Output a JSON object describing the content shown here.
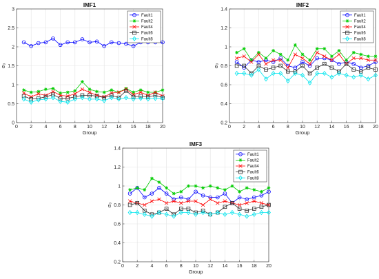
{
  "chart_data": [
    {
      "type": "line",
      "title": "IMF1",
      "xlabel": "Group",
      "ylabel": "σ₀",
      "xlim": [
        0,
        20
      ],
      "ylim": [
        0,
        3
      ],
      "xticks": [
        0,
        2,
        4,
        6,
        8,
        10,
        12,
        14,
        16,
        18,
        20
      ],
      "yticks": [
        0,
        0.5,
        1,
        1.5,
        2,
        2.5,
        3
      ],
      "grid": true,
      "legend": "top-right",
      "x": [
        1,
        2,
        3,
        4,
        5,
        6,
        7,
        8,
        9,
        10,
        11,
        12,
        13,
        14,
        15,
        16,
        17,
        18,
        19,
        20
      ],
      "series": [
        {
          "name": "Fault1",
          "color": "#0000ff",
          "marker": "circle",
          "values": [
            2.12,
            2.02,
            2.1,
            2.12,
            2.22,
            2.05,
            2.12,
            2.12,
            2.2,
            2.12,
            2.14,
            2.02,
            2.12,
            2.1,
            2.08,
            2.02,
            2.12,
            2.12,
            2.12,
            2.12
          ]
        },
        {
          "name": "Fault2",
          "color": "#00cc00",
          "marker": "star",
          "values": [
            0.86,
            0.8,
            0.82,
            0.88,
            0.9,
            0.78,
            0.8,
            0.84,
            1.08,
            0.88,
            0.82,
            0.8,
            0.86,
            0.8,
            0.9,
            0.8,
            0.86,
            0.8,
            0.8,
            0.86
          ]
        },
        {
          "name": "Fault4",
          "color": "#ff0000",
          "marker": "x",
          "values": [
            0.78,
            0.68,
            0.76,
            0.72,
            0.82,
            0.72,
            0.7,
            0.76,
            0.88,
            0.8,
            0.72,
            0.68,
            0.78,
            0.8,
            0.88,
            0.74,
            0.8,
            0.72,
            0.8,
            0.7
          ]
        },
        {
          "name": "Fault6",
          "color": "#333333",
          "marker": "square",
          "values": [
            0.7,
            0.62,
            0.64,
            0.68,
            0.74,
            0.64,
            0.64,
            0.68,
            0.72,
            0.72,
            0.7,
            0.66,
            0.72,
            0.66,
            0.84,
            0.68,
            0.7,
            0.68,
            0.72,
            0.66
          ]
        },
        {
          "name": "Fault8",
          "color": "#00e5ee",
          "marker": "diamond",
          "values": [
            0.62,
            0.54,
            0.6,
            0.62,
            0.66,
            0.56,
            0.54,
            0.62,
            0.66,
            0.62,
            0.62,
            0.58,
            0.66,
            0.62,
            0.66,
            0.62,
            0.64,
            0.62,
            0.64,
            0.64
          ]
        }
      ]
    },
    {
      "type": "line",
      "title": "IMF2",
      "xlabel": "Group",
      "ylabel": "σ₀",
      "xlim": [
        0,
        20
      ],
      "ylim": [
        0.2,
        1.4
      ],
      "xticks": [
        0,
        2,
        4,
        6,
        8,
        10,
        12,
        14,
        16,
        18,
        20
      ],
      "yticks": [
        0.2,
        0.4,
        0.6,
        0.8,
        1,
        1.2,
        1.4
      ],
      "grid": true,
      "legend": "top-right",
      "x": [
        1,
        2,
        3,
        4,
        5,
        6,
        7,
        8,
        9,
        10,
        11,
        12,
        13,
        14,
        15,
        16,
        17,
        18,
        19,
        20
      ],
      "series": [
        {
          "name": "Fault1",
          "color": "#0000ff",
          "marker": "circle",
          "values": [
            0.84,
            0.78,
            0.86,
            0.84,
            0.86,
            0.84,
            0.88,
            0.8,
            0.78,
            0.84,
            0.8,
            0.88,
            0.88,
            0.86,
            0.82,
            0.84,
            0.82,
            0.78,
            0.8,
            0.84
          ]
        },
        {
          "name": "Fault2",
          "color": "#00cc00",
          "marker": "star",
          "values": [
            0.94,
            0.98,
            0.86,
            0.94,
            0.88,
            0.96,
            0.92,
            0.86,
            1.02,
            0.92,
            0.86,
            0.98,
            0.98,
            0.9,
            0.96,
            0.86,
            0.94,
            0.92,
            0.9,
            0.9
          ]
        },
        {
          "name": "Fault4",
          "color": "#ff0000",
          "marker": "x",
          "values": [
            0.88,
            0.9,
            0.84,
            0.92,
            0.82,
            0.86,
            0.86,
            0.78,
            0.92,
            0.88,
            0.82,
            0.94,
            0.9,
            0.86,
            0.92,
            0.82,
            0.88,
            0.88,
            0.86,
            0.86
          ]
        },
        {
          "name": "Fault6",
          "color": "#333333",
          "marker": "square",
          "values": [
            0.8,
            0.8,
            0.72,
            0.8,
            0.76,
            0.78,
            0.8,
            0.74,
            0.74,
            0.8,
            0.72,
            0.78,
            0.82,
            0.78,
            0.74,
            0.82,
            0.76,
            0.74,
            0.78,
            0.76
          ]
        },
        {
          "name": "Fault8",
          "color": "#00e5ee",
          "marker": "diamond",
          "values": [
            0.72,
            0.72,
            0.7,
            0.76,
            0.66,
            0.72,
            0.72,
            0.64,
            0.72,
            0.7,
            0.62,
            0.72,
            0.72,
            0.68,
            0.72,
            0.7,
            0.68,
            0.7,
            0.66,
            0.7
          ]
        }
      ]
    },
    {
      "type": "line",
      "title": "IMF3",
      "xlabel": "Group",
      "ylabel": "σ₀",
      "xlim": [
        0,
        20
      ],
      "ylim": [
        0.2,
        1.4
      ],
      "xticks": [
        0,
        2,
        4,
        6,
        8,
        10,
        12,
        14,
        16,
        18,
        20
      ],
      "yticks": [
        0.2,
        0.4,
        0.6,
        0.8,
        1,
        1.2,
        1.4
      ],
      "grid": true,
      "legend": "top-right",
      "x": [
        1,
        2,
        3,
        4,
        5,
        6,
        7,
        8,
        9,
        10,
        11,
        12,
        13,
        14,
        15,
        16,
        17,
        18,
        19,
        20
      ],
      "series": [
        {
          "name": "Fault1",
          "color": "#0000ff",
          "marker": "circle",
          "values": [
            0.92,
            0.98,
            0.88,
            0.92,
            0.98,
            0.92,
            0.86,
            0.88,
            0.86,
            0.94,
            0.9,
            0.88,
            0.88,
            0.92,
            0.82,
            0.88,
            0.86,
            0.88,
            0.9,
            0.94
          ]
        },
        {
          "name": "Fault2",
          "color": "#00cc00",
          "marker": "star",
          "values": [
            0.96,
            0.98,
            0.96,
            1.08,
            1.04,
            0.98,
            0.92,
            0.94,
            1.0,
            1.0,
            0.98,
            1.0,
            0.98,
            0.96,
            1.0,
            0.94,
            0.98,
            0.96,
            0.94,
            0.98
          ]
        },
        {
          "name": "Fault4",
          "color": "#ff0000",
          "marker": "x",
          "values": [
            0.84,
            0.82,
            0.8,
            0.84,
            0.86,
            0.82,
            0.84,
            0.82,
            0.84,
            0.84,
            0.8,
            0.86,
            0.82,
            0.84,
            0.82,
            0.8,
            0.82,
            0.84,
            0.82,
            0.8
          ]
        },
        {
          "name": "Fault6",
          "color": "#333333",
          "marker": "square",
          "values": [
            0.8,
            0.82,
            0.74,
            0.7,
            0.72,
            0.76,
            0.7,
            0.76,
            0.76,
            0.72,
            0.74,
            0.7,
            0.72,
            0.78,
            0.82,
            0.76,
            0.74,
            0.76,
            0.78,
            0.8
          ]
        },
        {
          "name": "Fault8",
          "color": "#00e5ee",
          "marker": "diamond",
          "values": [
            0.72,
            0.72,
            0.7,
            0.68,
            0.72,
            0.7,
            0.68,
            0.72,
            0.72,
            0.7,
            0.72,
            0.7,
            0.72,
            0.7,
            0.72,
            0.7,
            0.68,
            0.7,
            0.72,
            0.72
          ]
        }
      ]
    }
  ]
}
